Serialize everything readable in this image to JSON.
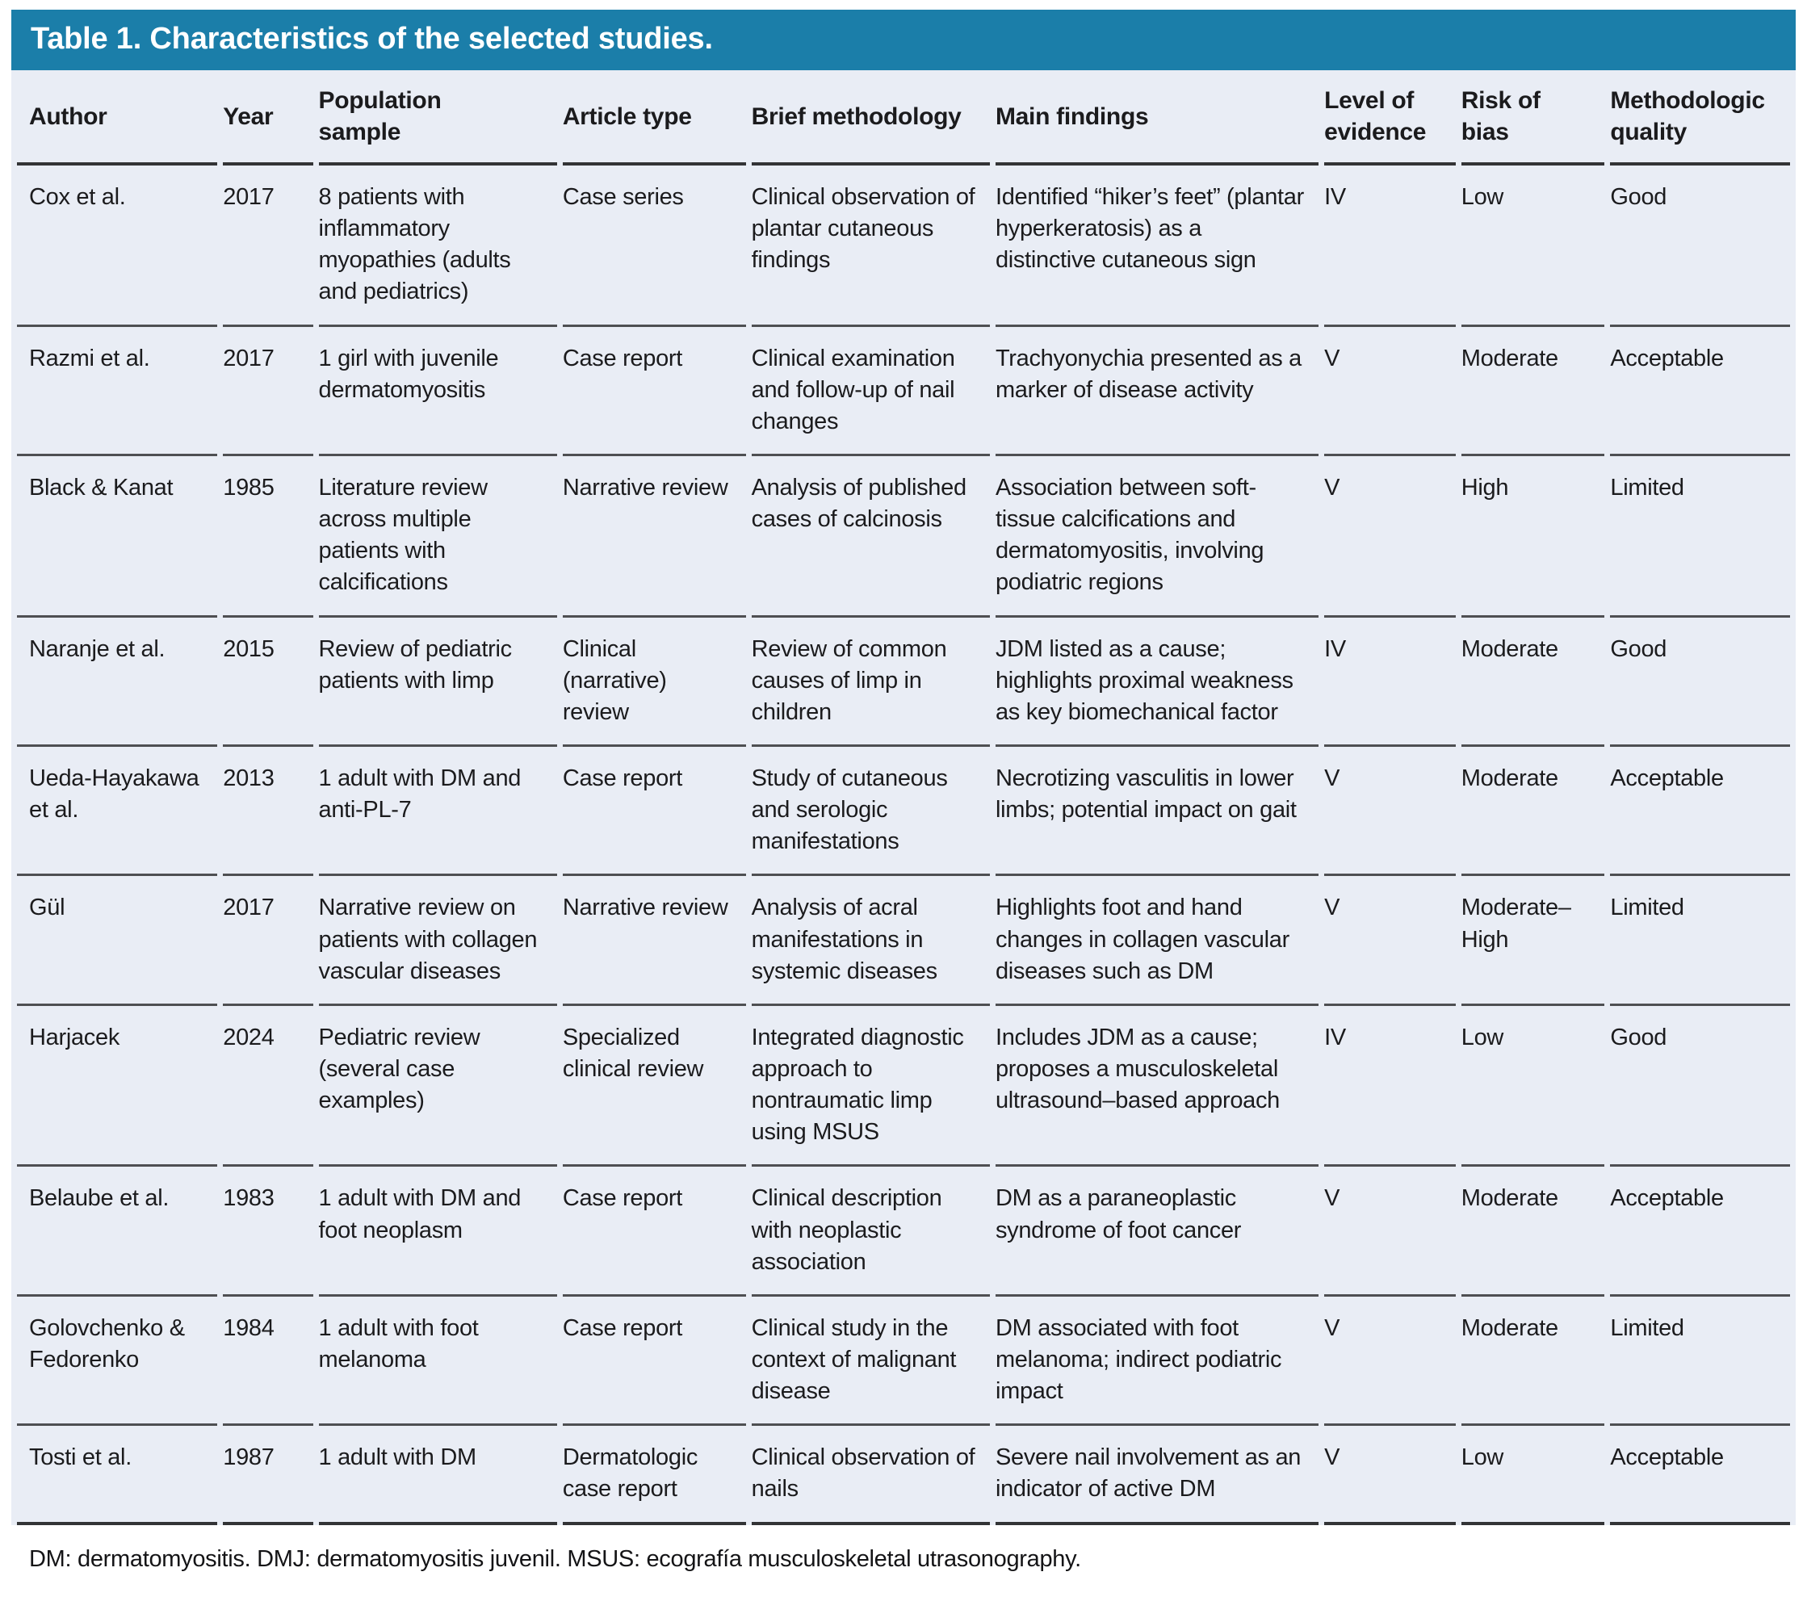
{
  "table": {
    "title": "Table 1. Characteristics of the selected studies.",
    "columns": [
      "Author",
      "Year",
      "Population sample",
      "Article type",
      "Brief methodology",
      "Main findings",
      "Level of evidence",
      "Risk of bias",
      "Methodologic quality"
    ],
    "rows": [
      {
        "author": "Cox et al.",
        "year": "2017",
        "population": "8 patients with inflammatory myopathies (adults and pediatrics)",
        "article_type": "Case series",
        "methodology": "Clinical observation of plantar cutaneous findings",
        "findings": "Identified “hiker’s feet” (plantar hyperkeratosis) as a distinctive cutaneous sign",
        "evidence": "IV",
        "bias": "Low",
        "quality": "Good"
      },
      {
        "author": "Razmi et al.",
        "year": "2017",
        "population": "1 girl with juvenile dermatomyositis",
        "article_type": "Case report",
        "methodology": "Clinical examination and follow-up of nail changes",
        "findings": "Trachyonychia presented as a marker of disease activity",
        "evidence": "V",
        "bias": "Moderate",
        "quality": "Acceptable"
      },
      {
        "author": "Black & Kanat",
        "year": "1985",
        "population": "Literature review across multiple patients with calcifications",
        "article_type": "Narrative review",
        "methodology": "Analysis of published cases of calcinosis",
        "findings": "Association between soft-tissue calcifications and dermatomyositis, involving podiatric regions",
        "evidence": "V",
        "bias": "High",
        "quality": "Limited"
      },
      {
        "author": "Naranje et al.",
        "year": "2015",
        "population": "Review of pediatric patients with limp",
        "article_type": "Clinical (narrative) review",
        "methodology": "Review of common causes of limp in children",
        "findings": "JDM listed as a cause; highlights proximal weakness as key biomechanical factor",
        "evidence": "IV",
        "bias": "Moderate",
        "quality": "Good"
      },
      {
        "author": "Ueda-Hayakawa et al.",
        "year": "2013",
        "population": "1 adult with DM and anti-PL-7",
        "article_type": "Case report",
        "methodology": "Study of cutaneous and serologic manifestations",
        "findings": "Necrotizing vasculitis in lower limbs; potential impact on gait",
        "evidence": "V",
        "bias": "Moderate",
        "quality": "Acceptable"
      },
      {
        "author": "Gül",
        "year": "2017",
        "population": "Narrative review on patients with collagen vascular diseases",
        "article_type": "Narrative review",
        "methodology": "Analysis of acral manifestations in systemic diseases",
        "findings": "Highlights foot and hand changes in collagen vascular diseases such as DM",
        "evidence": "V",
        "bias": "Moderate–High",
        "quality": "Limited"
      },
      {
        "author": "Harjacek",
        "year": "2024",
        "population": "Pediatric review (several case examples)",
        "article_type": "Specialized clinical review",
        "methodology": "Integrated diagnostic approach to nontraumatic limp using MSUS",
        "findings": "Includes JDM as a cause; proposes a musculoskeletal ultrasound–based approach",
        "evidence": "IV",
        "bias": "Low",
        "quality": "Good"
      },
      {
        "author": "Belaube et al.",
        "year": "1983",
        "population": "1 adult with DM and foot neoplasm",
        "article_type": "Case report",
        "methodology": "Clinical description with neoplastic association",
        "findings": "DM as a paraneoplastic syndrome of foot cancer",
        "evidence": "V",
        "bias": "Moderate",
        "quality": "Acceptable"
      },
      {
        "author": "Golovchenko & Fedorenko",
        "year": "1984",
        "population": "1 adult with foot melanoma",
        "article_type": "Case report",
        "methodology": "Clinical study in the context of malignant disease",
        "findings": "DM associated with foot melanoma; indirect podiatric impact",
        "evidence": "V",
        "bias": "Moderate",
        "quality": "Limited"
      },
      {
        "author": "Tosti et al.",
        "year": "1987",
        "population": "1 adult with DM",
        "article_type": "Dermatologic case report",
        "methodology": "Clinical observation of nails",
        "findings": "Severe nail involvement as an indicator of active DM",
        "evidence": "V",
        "bias": "Low",
        "quality": "Acceptable"
      }
    ],
    "footnote": "DM: dermatomyositis. DMJ: dermatomyositis juvenil. MSUS: ecografía musculoskeletal utrasonography.",
    "colors": {
      "header_bg": "#1b7ea9",
      "body_bg": "#e9edf5",
      "divider": "#4e4f52",
      "title_text": "#ffffff"
    }
  }
}
